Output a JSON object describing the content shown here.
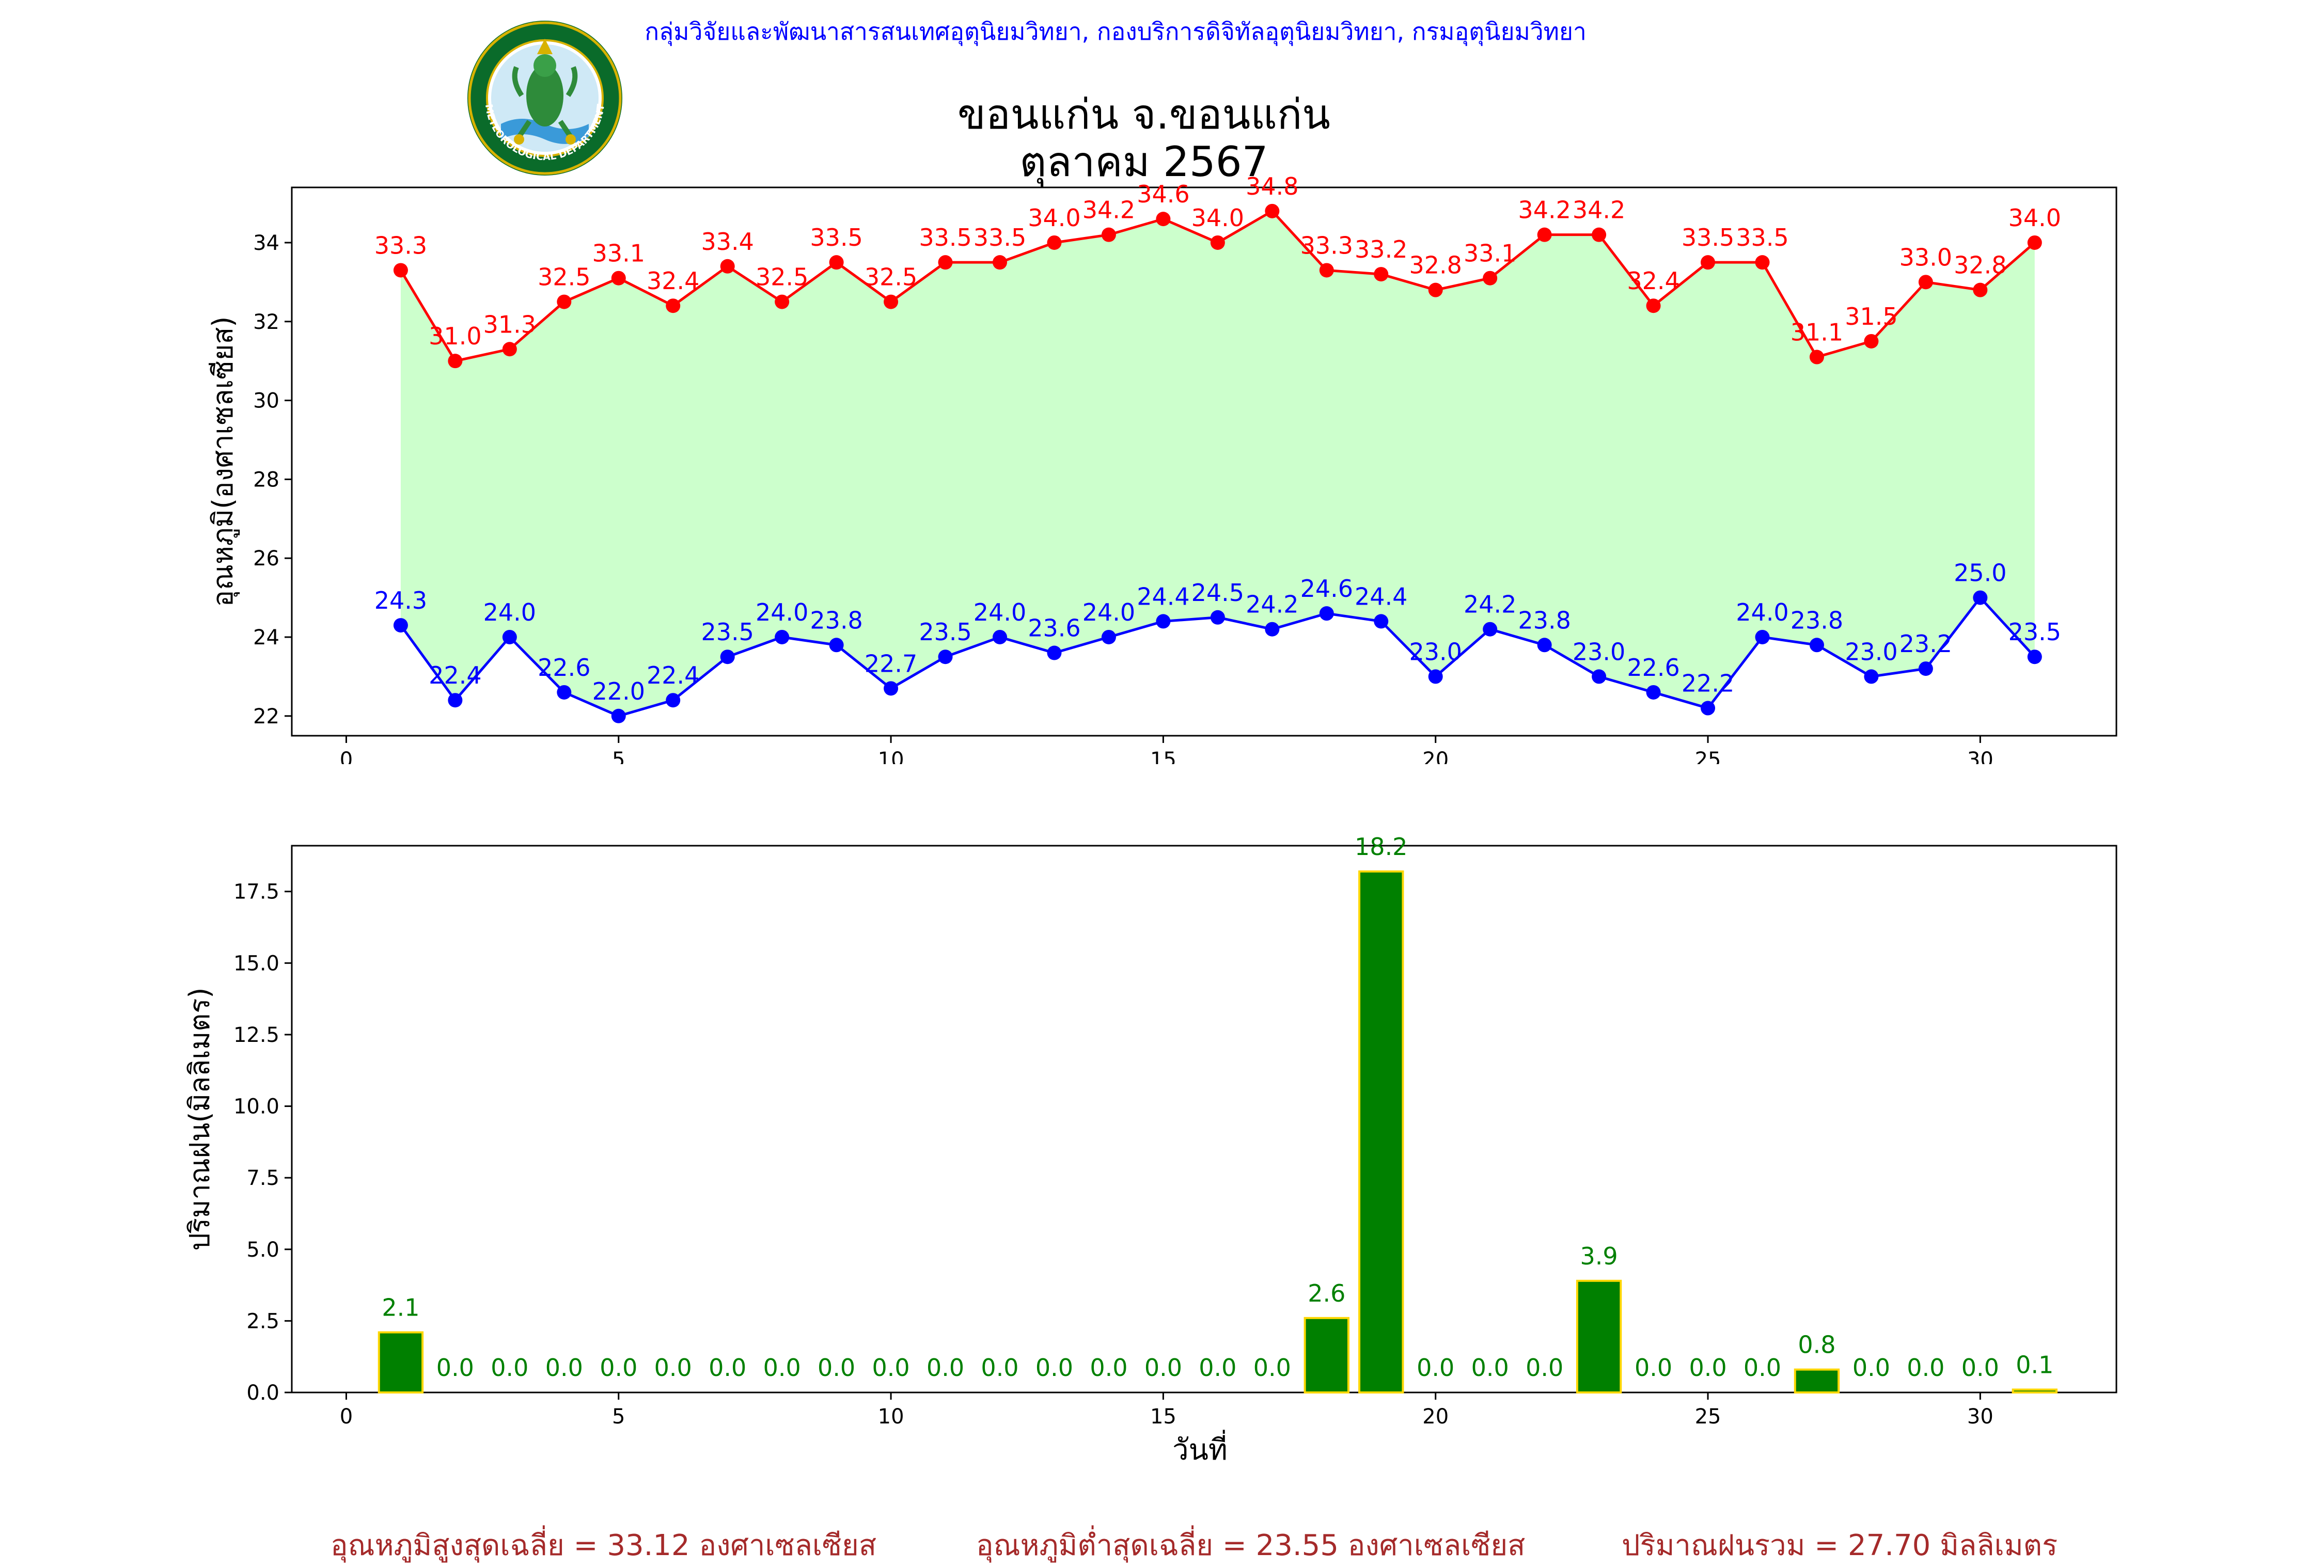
{
  "header": {
    "agency": "กลุ่มวิจัยและพัฒนาสารสนเทศอุตุนิยมวิทยา, กองบริการดิจิทัลอุตุนิยมวิทยา, กรมอุตุนิยมวิทยา",
    "agency_color": "#0000ff",
    "title_line1": "ขอนแก่น จ.ขอนแก่น",
    "title_line2": "ตุลาคม 2567"
  },
  "logo": {
    "icon": "meteorological-department-seal",
    "top_text": "กรมอุตุนิยมวิทยา",
    "bottom_text": "METEOROLOGICAL DEPARTMENT"
  },
  "footer": {
    "color": "#a52a2a",
    "avg_max": "อุณหภูมิสูงสุดเฉลี่ย = 33.12 องศาเซลเซียส",
    "avg_min": "อุณหภูมิต่ำสุดเฉลี่ย = 23.55 องศาเซลเซียส",
    "total_rain": "ปริมาณฝนรวม = 27.70 มิลลิเมตร"
  },
  "chart_data": [
    {
      "type": "line",
      "ylabel": "อุณหภูมิ(องศาเซลเซียส)",
      "xlim": [
        -1,
        32.5
      ],
      "ylim": [
        21.5,
        35.4
      ],
      "xticks": [
        0,
        5,
        10,
        15,
        20,
        25,
        30
      ],
      "yticks": [
        22,
        24,
        26,
        28,
        30,
        32,
        34
      ],
      "fill_between_color": "#ccffcc",
      "x": [
        1,
        2,
        3,
        4,
        5,
        6,
        7,
        8,
        9,
        10,
        11,
        12,
        13,
        14,
        15,
        16,
        17,
        18,
        19,
        20,
        21,
        22,
        23,
        24,
        25,
        26,
        27,
        28,
        29,
        30,
        31
      ],
      "series": [
        {
          "color": "#ff0000",
          "values": [
            33.3,
            31.0,
            31.3,
            32.5,
            33.1,
            32.4,
            33.4,
            32.5,
            33.5,
            32.5,
            33.5,
            33.5,
            34.0,
            34.2,
            34.6,
            34.0,
            34.8,
            33.3,
            33.2,
            32.8,
            33.1,
            34.2,
            34.2,
            32.4,
            33.5,
            33.5,
            31.1,
            31.5,
            33.0,
            32.8,
            34.0
          ]
        },
        {
          "color": "#0000ff",
          "values": [
            24.3,
            22.4,
            24.0,
            22.6,
            22.0,
            22.4,
            23.5,
            24.0,
            23.8,
            22.7,
            23.5,
            24.0,
            23.6,
            24.0,
            24.4,
            24.5,
            24.2,
            24.6,
            24.4,
            23.0,
            24.2,
            23.8,
            23.0,
            22.6,
            22.2,
            24.0,
            23.8,
            23.0,
            23.2,
            25.0,
            23.5
          ]
        }
      ],
      "labels": {
        "max": [
          "33.3",
          "31.0",
          "31.3",
          "32.5",
          "33.1",
          "32.4",
          "33.4",
          "32.5",
          "33.5",
          "32.5",
          "33.5",
          "33.5",
          "34.0",
          "34.2",
          "34.6",
          "34.0",
          "34.8",
          "33.3",
          "33.2",
          "32.8",
          "33.1",
          "34.2",
          "34.2",
          "32.4",
          "33.5",
          "33.5",
          "31.1",
          "31.5",
          "33.0",
          "32.8",
          "34.0"
        ],
        "min": [
          "24.3",
          "22.4",
          "24.0",
          "22.6",
          "22.0",
          "22.4",
          "23.5",
          "24.0",
          "23.8",
          "22.7",
          "23.5",
          "24.0",
          "23.6",
          "24.0",
          "24.4",
          "24.5",
          "24.2",
          "24.6",
          "24.4",
          "23.0",
          "24.2",
          "23.8",
          "23.0",
          "22.6",
          "22.2",
          "24.0",
          "23.8",
          "23.0",
          "23.2",
          "25.0",
          "23.5"
        ]
      },
      "xtick_labels": [
        "0",
        "5",
        "10",
        "15",
        "20",
        "25",
        "30"
      ],
      "ytick_labels": [
        "22",
        "24",
        "26",
        "28",
        "30",
        "32",
        "34"
      ]
    },
    {
      "type": "bar",
      "ylabel": "ปริมาณฝน(มิลลิเมตร)",
      "xlabel": "วันที่",
      "xlim": [
        -1,
        32.5
      ],
      "ylim": [
        0,
        19.1
      ],
      "xticks": [
        0,
        5,
        10,
        15,
        20,
        25,
        30
      ],
      "yticks": [
        0,
        2.5,
        5,
        7.5,
        10,
        12.5,
        15,
        17.5
      ],
      "bar_color": "#008000",
      "bar_edge_color": "#ffd700",
      "label_color": "#008000",
      "x": [
        1,
        2,
        3,
        4,
        5,
        6,
        7,
        8,
        9,
        10,
        11,
        12,
        13,
        14,
        15,
        16,
        17,
        18,
        19,
        20,
        21,
        22,
        23,
        24,
        25,
        26,
        27,
        28,
        29,
        30,
        31
      ],
      "values": [
        2.1,
        0,
        0,
        0,
        0,
        0,
        0,
        0,
        0,
        0,
        0,
        0,
        0,
        0,
        0,
        0,
        0,
        2.6,
        18.2,
        0,
        0,
        0,
        3.9,
        0,
        0,
        0,
        0.8,
        0,
        0,
        0,
        0.1
      ],
      "labels": [
        "2.1",
        "0.0",
        "0.0",
        "0.0",
        "0.0",
        "0.0",
        "0.0",
        "0.0",
        "0.0",
        "0.0",
        "0.0",
        "0.0",
        "0.0",
        "0.0",
        "0.0",
        "0.0",
        "0.0",
        "2.6",
        "18.2",
        "0.0",
        "0.0",
        "0.0",
        "3.9",
        "0.0",
        "0.0",
        "0.0",
        "0.8",
        "0.0",
        "0.0",
        "0.0",
        "0.1"
      ],
      "xtick_labels": [
        "0",
        "5",
        "10",
        "15",
        "20",
        "25",
        "30"
      ],
      "ytick_labels": [
        "0.0",
        "2.5",
        "5.0",
        "7.5",
        "10.0",
        "12.5",
        "15.0",
        "17.5"
      ]
    }
  ]
}
